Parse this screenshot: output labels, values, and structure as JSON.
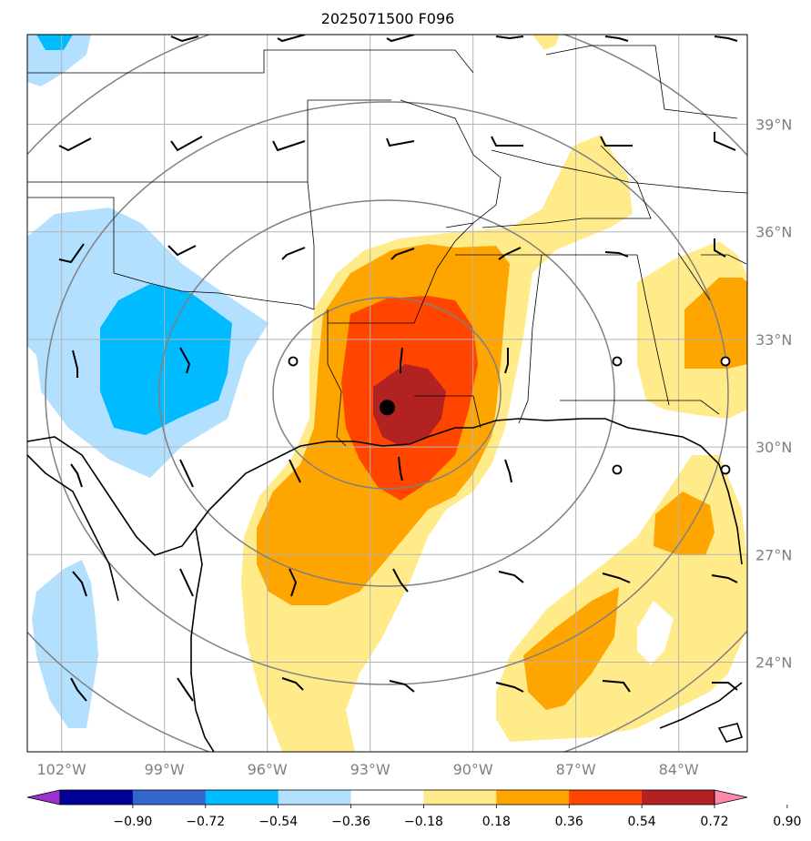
{
  "title": "2025071500 F096",
  "map": {
    "lon_range": [
      -103,
      -82
    ],
    "lat_range": [
      21.5,
      41.5
    ],
    "lon_ticks": [
      {
        "value": -102,
        "label": "102°W"
      },
      {
        "value": -99,
        "label": "99°W"
      },
      {
        "value": -96,
        "label": "96°W"
      },
      {
        "value": -93,
        "label": "93°W"
      },
      {
        "value": -90,
        "label": "90°W"
      },
      {
        "value": -87,
        "label": "87°W"
      },
      {
        "value": -84,
        "label": "84°W"
      }
    ],
    "lat_ticks": [
      {
        "value": 39,
        "label": "39°N"
      },
      {
        "value": 36,
        "label": "36°N"
      },
      {
        "value": 33,
        "label": "33°N"
      },
      {
        "value": 30,
        "label": "30°N"
      },
      {
        "value": 27,
        "label": "27°N"
      },
      {
        "value": 24,
        "label": "24°N"
      }
    ],
    "center_marker": {
      "lon": -92.5,
      "lat": 31.1
    }
  },
  "colorbar": {
    "levels": [
      "−0.90",
      "−0.72",
      "−0.54",
      "−0.36",
      "−0.18",
      "0.18",
      "0.36",
      "0.54",
      "0.72",
      "0.90"
    ],
    "colors": [
      "#9933cc",
      "#000099",
      "#3366cc",
      "#00bbff",
      "#b3e0ff",
      "#ffffff",
      "#ffeb8a",
      "#ffa500",
      "#ff4500",
      "#b22222",
      "#ff88aa"
    ]
  },
  "fill_colors": {
    "neg_light": "#b3e0ff",
    "neg_mid": "#00bbff",
    "pos_light": "#ffeb8a",
    "pos_mid": "#ffa500",
    "pos_high": "#ff4500",
    "pos_max": "#b22222"
  }
}
